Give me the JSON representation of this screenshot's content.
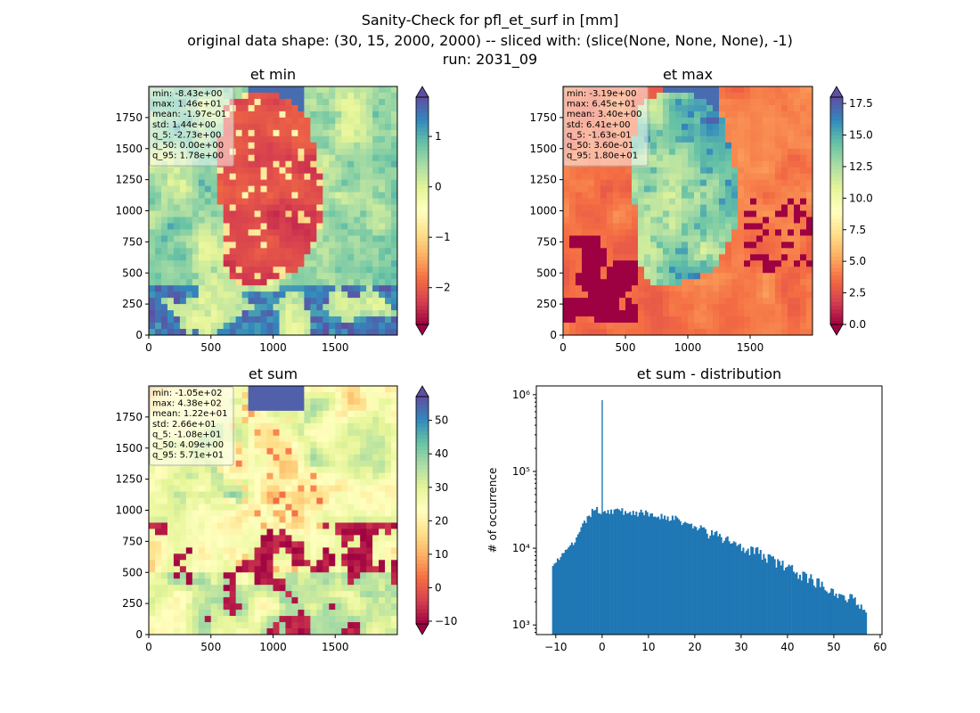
{
  "figure": {
    "title_lines": [
      "Sanity-Check for pfl_et_surf in [mm]",
      "original data shape: (30, 15, 2000, 2000) -- sliced with: (slice(None, None, None), -1)",
      "run: 2031_09"
    ]
  },
  "colormap": {
    "name": "Spectral",
    "stops": [
      "#9e0142",
      "#d53e4f",
      "#f46d43",
      "#fdae61",
      "#fee08b",
      "#ffffbf",
      "#e6f598",
      "#abdda4",
      "#66c2a5",
      "#3288bd",
      "#5e4fa2"
    ]
  },
  "chart_data": [
    {
      "type": "heatmap",
      "title": "et min",
      "xlim": [
        0,
        2000
      ],
      "ylim": [
        0,
        2000
      ],
      "xticks": [
        "0",
        "500",
        "1000",
        "1500"
      ],
      "yticks": [
        "0",
        "250",
        "500",
        "750",
        "1000",
        "1250",
        "1500",
        "1750"
      ],
      "colorbar": {
        "range": [
          -2.73,
          1.78
        ],
        "ticks": [
          -2,
          -1,
          0,
          1
        ],
        "tick_labels": [
          "−2",
          "−1",
          "0",
          "1"
        ],
        "extend": "both"
      },
      "stats": [
        "min: -8.43e+00",
        "max: 1.46e+01",
        "mean: -1.97e-01",
        "std: 1.44e+00",
        "q_5: -2.73e+00",
        "q_50: 0.00e+00",
        "q_95: 1.78e+00"
      ]
    },
    {
      "type": "heatmap",
      "title": "et max",
      "xlim": [
        0,
        2000
      ],
      "ylim": [
        0,
        2000
      ],
      "xticks": [
        "0",
        "500",
        "1000",
        "1500"
      ],
      "yticks": [
        "0",
        "250",
        "500",
        "750",
        "1000",
        "1250",
        "1500",
        "1750"
      ],
      "colorbar": {
        "range": [
          0,
          18.0
        ],
        "ticks": [
          0,
          2.5,
          5,
          7.5,
          10,
          12.5,
          15,
          17.5
        ],
        "tick_labels": [
          "0.0",
          "2.5",
          "5.0",
          "7.5",
          "10.0",
          "12.5",
          "15.0",
          "17.5"
        ],
        "extend": "both"
      },
      "stats": [
        "min: -3.19e+00",
        "max: 6.45e+01",
        "mean: 3.40e+00",
        "std: 6.41e+00",
        "q_5: -1.63e-01",
        "q_50: 3.60e-01",
        "q_95: 1.80e+01"
      ]
    },
    {
      "type": "heatmap",
      "title": "et sum",
      "xlim": [
        0,
        2000
      ],
      "ylim": [
        0,
        2000
      ],
      "xticks": [
        "0",
        "500",
        "1000",
        "1500"
      ],
      "yticks": [
        "0",
        "250",
        "500",
        "750",
        "1000",
        "1250",
        "1500",
        "1750"
      ],
      "colorbar": {
        "range": [
          -10.8,
          57.1
        ],
        "ticks": [
          -10,
          0,
          10,
          20,
          30,
          40,
          50
        ],
        "tick_labels": [
          "−10",
          "0",
          "10",
          "20",
          "30",
          "40",
          "50"
        ],
        "extend": "both"
      },
      "stats": [
        "min: -1.05e+02",
        "max: 4.38e+02",
        "mean: 1.22e+01",
        "std: 2.66e+01",
        "q_5: -1.08e+01",
        "q_50: 4.09e+00",
        "q_95: 5.71e+01"
      ]
    },
    {
      "type": "bar",
      "title": "et sum - distribution",
      "xlabel": "",
      "ylabel": "# of occurrence",
      "yscale": "log",
      "xlim": [
        -14.2,
        60.4
      ],
      "ylim": [
        750,
        1300000
      ],
      "xticks": [
        -10,
        0,
        10,
        20,
        30,
        40,
        50,
        60
      ],
      "xtick_labels": [
        "−10",
        "0",
        "10",
        "20",
        "30",
        "40",
        "50",
        "60"
      ],
      "yticks": [
        1000,
        10000,
        100000,
        1000000
      ],
      "ytick_labels": [
        "10³",
        "10⁴",
        "10⁵",
        "10⁶"
      ],
      "color": "#1f77b4",
      "bin_range": [
        -10.8,
        57.1
      ],
      "bin_count": 200,
      "anchors": [
        [
          -10.8,
          6500
        ],
        [
          -9,
          7500
        ],
        [
          -7,
          10000
        ],
        [
          -5,
          15000
        ],
        [
          -4,
          20000
        ],
        [
          -3,
          26000
        ],
        [
          -1.5,
          32000
        ],
        [
          0,
          30000
        ],
        [
          2,
          31000
        ],
        [
          5,
          30000
        ],
        [
          10,
          28000
        ],
        [
          15,
          25000
        ],
        [
          20,
          19000
        ],
        [
          25,
          14000
        ],
        [
          30,
          11000
        ],
        [
          35,
          8000
        ],
        [
          40,
          5500
        ],
        [
          45,
          4000
        ],
        [
          50,
          2800
        ],
        [
          55,
          2000
        ],
        [
          57.1,
          1700
        ]
      ],
      "peak": {
        "x": 0,
        "value": 850000
      }
    }
  ]
}
